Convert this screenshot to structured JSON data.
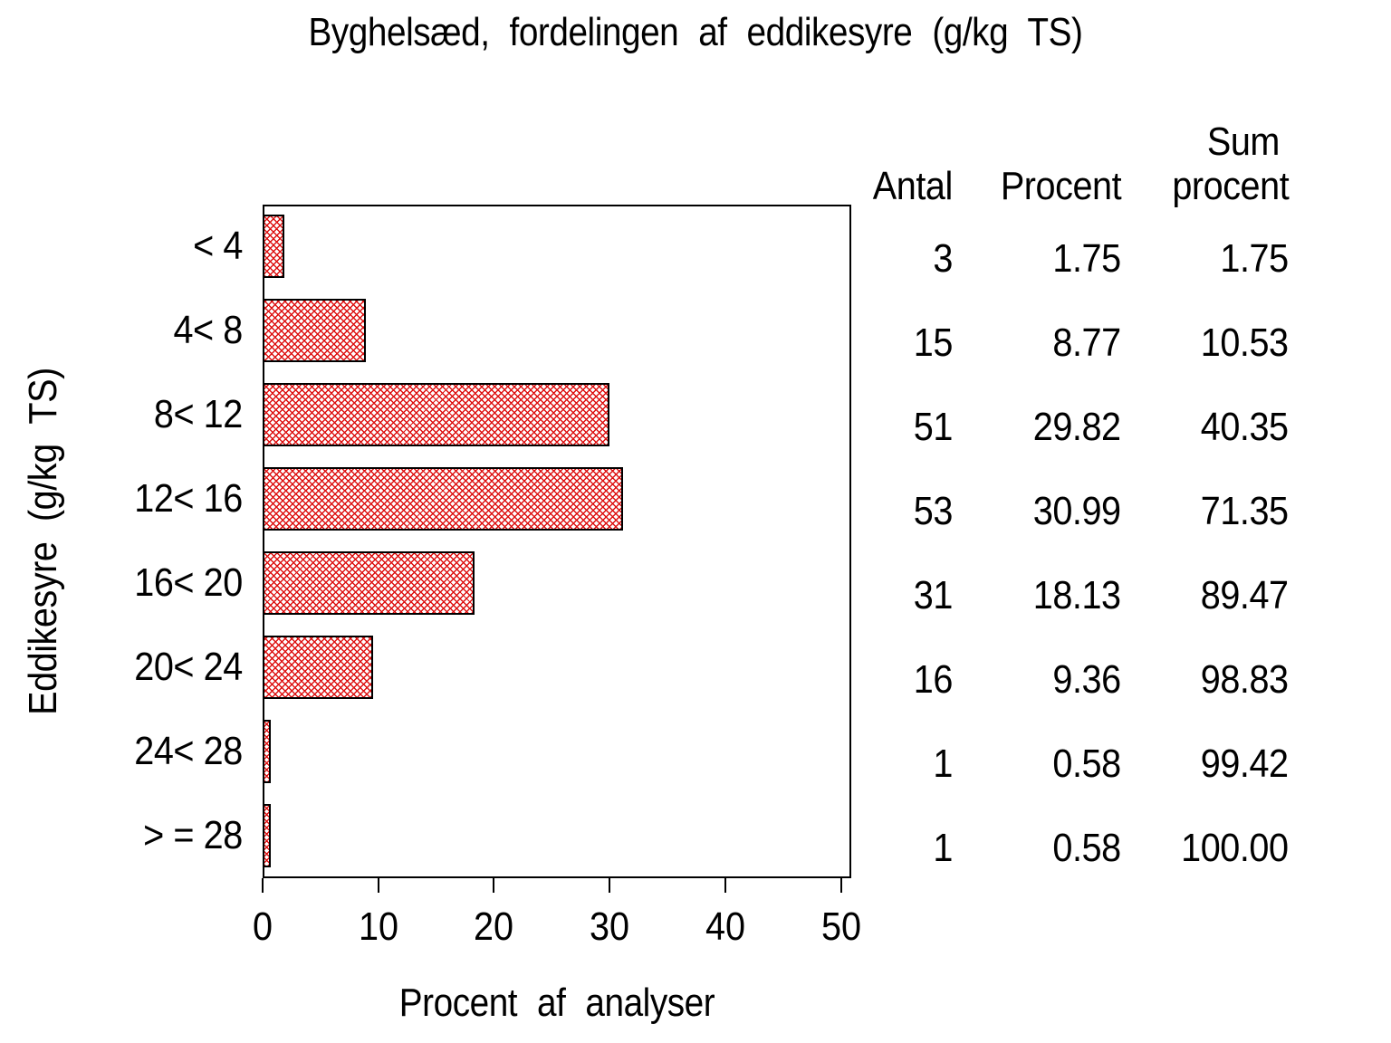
{
  "title": "Byghelsæd, fordelingen af eddikesyre (g/kg TS)",
  "chart_data": {
    "type": "bar",
    "orientation": "horizontal",
    "title": "Byghelsæd, fordelingen af eddikesyre (g/kg TS)",
    "xlabel": "Procent af analyser",
    "ylabel": "Eddikesyre (g/kg TS)",
    "categories": [
      "< 4",
      "4< 8",
      "8< 12",
      "12< 16",
      "16< 20",
      "20< 24",
      "24< 28",
      "> = 28"
    ],
    "values": [
      1.75,
      8.77,
      29.82,
      30.99,
      18.13,
      9.36,
      0.58,
      0.58
    ],
    "counts": [
      3,
      15,
      51,
      53,
      31,
      16,
      1,
      1
    ],
    "cumulative_percent": [
      1.75,
      10.53,
      40.35,
      71.35,
      89.47,
      98.83,
      99.42,
      100.0
    ],
    "xlim": [
      0,
      50.9
    ],
    "xticks": [
      0,
      10,
      20,
      30,
      40,
      50
    ],
    "grid": false,
    "legend": "none",
    "bar_style": "red diagonal crosshatch with black outline"
  },
  "table": {
    "header": {
      "antal": "Antal",
      "procent": "Procent",
      "sum_top": "Sum",
      "sum_bottom": "procent"
    },
    "rows": [
      [
        "3",
        "1.75",
        "1.75"
      ],
      [
        "15",
        "8.77",
        "10.53"
      ],
      [
        "51",
        "29.82",
        "40.35"
      ],
      [
        "53",
        "30.99",
        "71.35"
      ],
      [
        "31",
        "18.13",
        "89.47"
      ],
      [
        "16",
        "9.36",
        "98.83"
      ],
      [
        "1",
        "0.58",
        "99.42"
      ],
      [
        "1",
        "0.58",
        "100.00"
      ]
    ]
  },
  "colors": {
    "hatch": "#dd1111",
    "text": "#000000",
    "background": "#ffffff",
    "frame": "#000000"
  }
}
